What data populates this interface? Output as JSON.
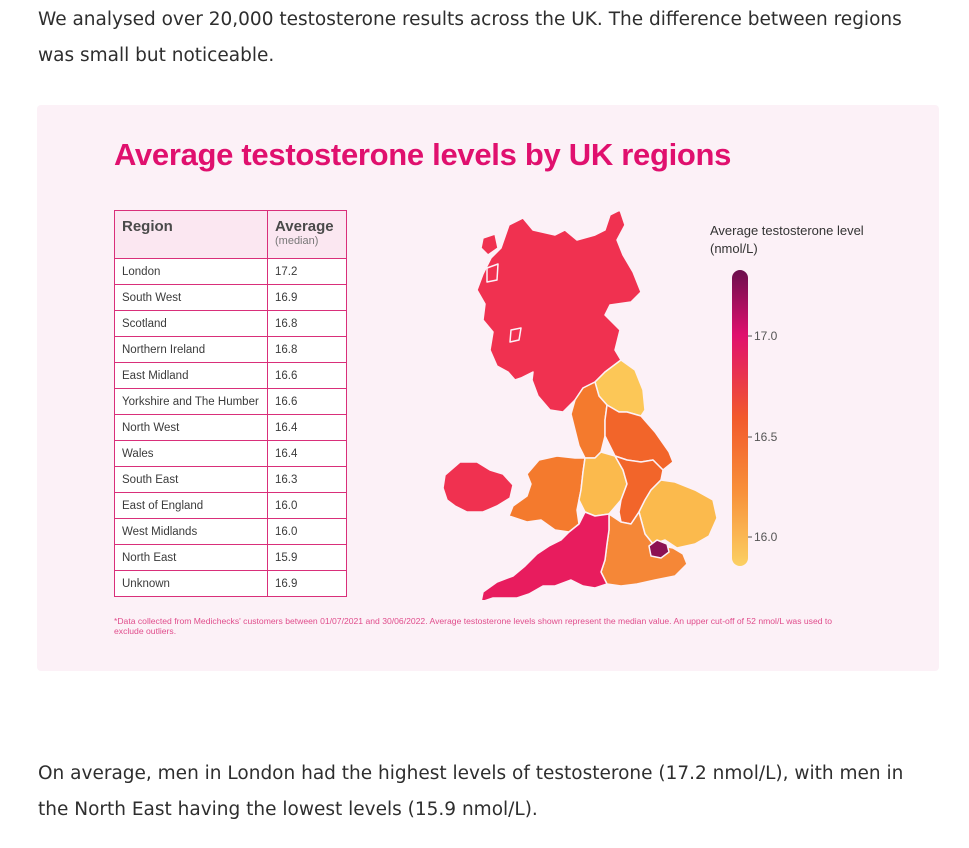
{
  "intro_text": "We analysed over 20,000 testosterone results across the UK. The difference between regions was small but noticeable.",
  "infographic": {
    "title": "Average testosterone levels by UK regions",
    "table": {
      "col_region": "Region",
      "col_average": "Average",
      "col_average_sub": "(median)",
      "rows": [
        {
          "region": "London",
          "value": "17.2"
        },
        {
          "region": "South West",
          "value": "16.9"
        },
        {
          "region": "Scotland",
          "value": "16.8"
        },
        {
          "region": "Northern Ireland",
          "value": "16.8"
        },
        {
          "region": "East Midland",
          "value": "16.6"
        },
        {
          "region": "Yorkshire and The Humber",
          "value": "16.6"
        },
        {
          "region": "North West",
          "value": "16.4"
        },
        {
          "region": "Wales",
          "value": "16.4"
        },
        {
          "region": "South East",
          "value": "16.3"
        },
        {
          "region": "East of England",
          "value": "16.0"
        },
        {
          "region": "West Midlands",
          "value": "16.0"
        },
        {
          "region": "North East",
          "value": "15.9"
        },
        {
          "region": "Unknown",
          "value": "16.9"
        }
      ]
    },
    "legend": {
      "title": "Average testosterone level (nmol/L)",
      "ticks": [
        "17.0",
        "16.5",
        "16.0"
      ],
      "colors": {
        "top": "#6b0f4d",
        "upper": "#e0106e",
        "mid": "#f25a2c",
        "lower": "#f8913a",
        "bottom": "#fbd063"
      }
    },
    "map_colors": {
      "London": "#8c1153",
      "South West": "#e81c5e",
      "Scotland": "#f03150",
      "Northern Ireland": "#f03150",
      "East Midland": "#f2652a",
      "Yorkshire and The Humber": "#f2652a",
      "North West": "#f47a2d",
      "Wales": "#f47a2d",
      "South East": "#f58737",
      "East of England": "#fbba4d",
      "West Midlands": "#fbba4d",
      "North East": "#fcc757"
    },
    "footnote": "*Data collected from Medichecks' customers between 01/07/2021 and 30/06/2022. Average testosterone levels shown represent the median value. An upper cut-off of 52 nmol/L was used to exclude outliers."
  },
  "outro_text": "On average, men in London had the highest levels of testosterone (17.2 nmol/L), with men in the North East having the lowest levels (15.9 nmol/L)."
}
